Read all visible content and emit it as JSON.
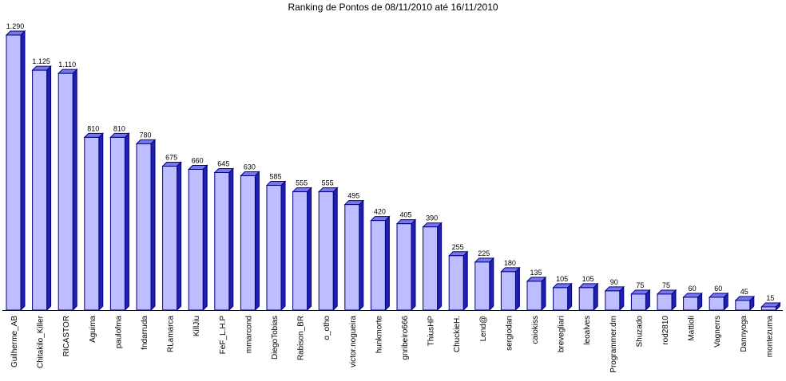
{
  "chart_data": {
    "type": "bar",
    "title": "Ranking de Pontos de 08/11/2010 até 16/11/2010",
    "xlabel": "",
    "ylabel": "",
    "ylim": [
      0,
      1290
    ],
    "grid": false,
    "legend": "none",
    "colors": {
      "bar_face": "#BDBDFF",
      "bar_side": "#2020B0",
      "bar_edge": "#000080",
      "axis": "#000000"
    },
    "categories": [
      "Guilherme_AB",
      "Chitakilo_Killer",
      "RICASTOR",
      "Aguima",
      "paulofma",
      "fndarruda",
      "RLamarca",
      "KillJiu",
      "FeF_L.H.P",
      "mmarcond",
      "DiegoTobias",
      "Rabison_BR",
      "o_otho",
      "victor.nogueira",
      "hunkmorte",
      "gnribeiro666",
      "ThiusHP",
      "ChuckieH.",
      "Lend@",
      "sergiodan",
      "caiokiss",
      "brevegliari",
      "leoalves",
      "Programmer.dm",
      "Shuzado",
      "rod2810",
      "Mattioli",
      "Vagnerrs",
      "Dannyoga",
      "montezuma"
    ],
    "values": [
      1290,
      1125,
      1110,
      810,
      810,
      780,
      675,
      660,
      645,
      630,
      585,
      555,
      555,
      495,
      420,
      405,
      390,
      255,
      225,
      180,
      135,
      105,
      105,
      90,
      75,
      75,
      60,
      60,
      45,
      15
    ],
    "value_labels": [
      "1.290",
      "1.125",
      "1.110",
      "810",
      "810",
      "780",
      "675",
      "660",
      "645",
      "630",
      "585",
      "555",
      "555",
      "495",
      "420",
      "405",
      "390",
      "255",
      "225",
      "180",
      "135",
      "105",
      "105",
      "90",
      "75",
      "75",
      "60",
      "60",
      "45",
      "15"
    ]
  }
}
